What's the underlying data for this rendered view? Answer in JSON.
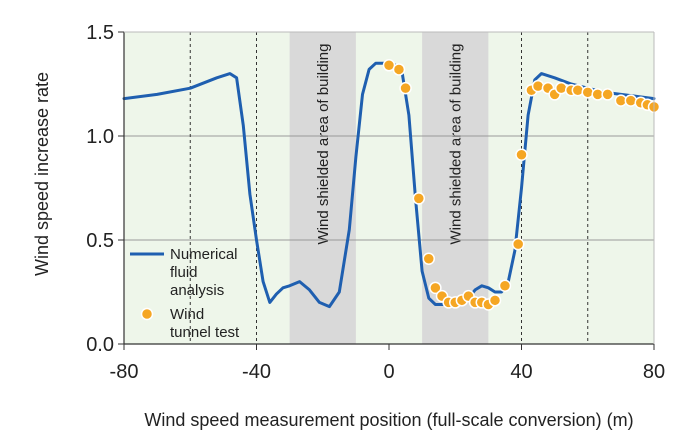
{
  "chart_data": {
    "type": "line",
    "title": "",
    "xlabel": "Wind speed measurement position (full-scale conversion) (m)",
    "ylabel": "Wind speed increase rate",
    "xlim": [
      -80,
      80
    ],
    "ylim": [
      0,
      1.5
    ],
    "xticks": [
      "-80",
      "-40",
      "0",
      "40",
      "80"
    ],
    "xtick_values": [
      -80,
      -40,
      0,
      40,
      80
    ],
    "yticks": [
      "0.0",
      "0.5",
      "1.0",
      "1.5"
    ],
    "ytick_values": [
      0,
      0.5,
      1.0,
      1.5
    ],
    "horizontal_grid": [
      0.5,
      1.0
    ],
    "dotted_lines": [
      -60,
      -40,
      40,
      60
    ],
    "shaded_regions": [
      {
        "from": -30,
        "to": -10,
        "label": "Wind shielded area of building"
      },
      {
        "from": 10,
        "to": 30,
        "label": "Wind shielded area of building"
      }
    ],
    "series": [
      {
        "name": "Numerical fluid analysis",
        "kind": "line",
        "color": "#1f5fb0",
        "x": [
          -80,
          -70,
          -60,
          -52,
          -48,
          -46,
          -44,
          -42,
          -40,
          -38,
          -36,
          -34,
          -32,
          -30,
          -27,
          -24,
          -21,
          -18,
          -15,
          -12,
          -10,
          -8,
          -6,
          -4,
          -2,
          0,
          2,
          4,
          6,
          8,
          10,
          12,
          14,
          16,
          18,
          20,
          22,
          24,
          26,
          28,
          30,
          32,
          34,
          36,
          38,
          40,
          42,
          44,
          46,
          48,
          50,
          55,
          60,
          65,
          70,
          75,
          80
        ],
        "y": [
          1.18,
          1.2,
          1.23,
          1.28,
          1.3,
          1.28,
          1.05,
          0.72,
          0.5,
          0.3,
          0.2,
          0.24,
          0.27,
          0.28,
          0.3,
          0.26,
          0.2,
          0.18,
          0.25,
          0.55,
          0.9,
          1.2,
          1.32,
          1.35,
          1.35,
          1.35,
          1.34,
          1.3,
          1.1,
          0.7,
          0.35,
          0.22,
          0.19,
          0.19,
          0.19,
          0.19,
          0.2,
          0.22,
          0.26,
          0.28,
          0.27,
          0.25,
          0.25,
          0.3,
          0.45,
          0.75,
          1.1,
          1.27,
          1.3,
          1.29,
          1.28,
          1.25,
          1.23,
          1.21,
          1.2,
          1.19,
          1.18
        ]
      },
      {
        "name": "Wind tunnel test",
        "kind": "scatter",
        "color": "#f5a623",
        "x": [
          0,
          3,
          5,
          9,
          12,
          14,
          16,
          18,
          20,
          22,
          24,
          26,
          28,
          30,
          32,
          35,
          39,
          40,
          43,
          45,
          48,
          50,
          52,
          55,
          57,
          60,
          63,
          66,
          70,
          73,
          76,
          78,
          80
        ],
        "y": [
          1.34,
          1.32,
          1.23,
          0.7,
          0.41,
          0.27,
          0.23,
          0.2,
          0.2,
          0.21,
          0.23,
          0.2,
          0.2,
          0.19,
          0.21,
          0.28,
          0.48,
          0.91,
          1.22,
          1.24,
          1.23,
          1.2,
          1.23,
          1.22,
          1.22,
          1.21,
          1.2,
          1.2,
          1.17,
          1.17,
          1.16,
          1.15,
          1.14
        ]
      }
    ],
    "legend": [
      {
        "label_lines": [
          "Numerical",
          "fluid",
          "analysis"
        ],
        "marker": "line"
      },
      {
        "label_lines": [
          "Wind",
          "tunnel test"
        ],
        "marker": "circle"
      }
    ],
    "legend_position": "bottom-left"
  },
  "colors": {
    "plot_background": "#eef6ea",
    "shaded_region": "#d9d9d9",
    "grid": "#999999",
    "line": "#1f5fb0",
    "marker_fill": "#f5a623",
    "marker_edge": "#ffffff"
  }
}
